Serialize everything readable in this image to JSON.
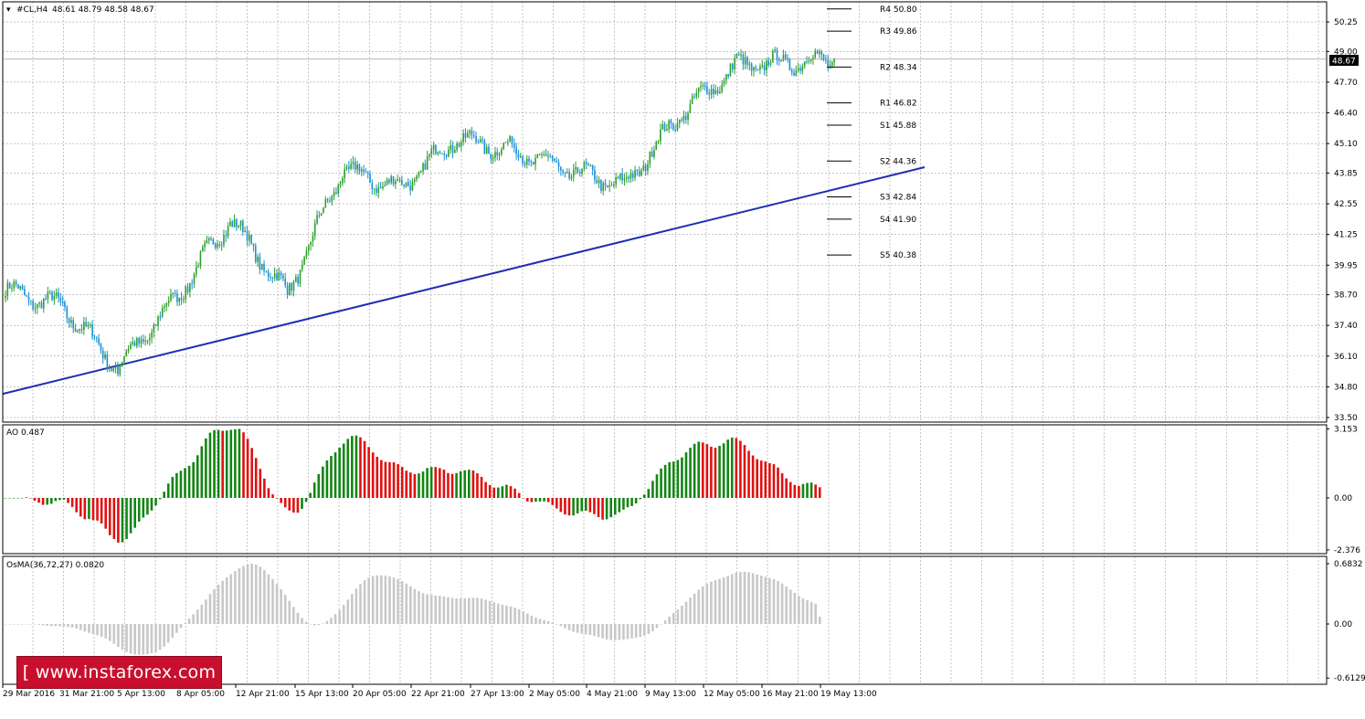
{
  "header": {
    "symbol_label": "#CL,H4",
    "quote": "48.61 48.79 48.58 48.67"
  },
  "watermark": "[ www.instaforex.com ]",
  "colors": {
    "bull": "#2e9e2e",
    "bear": "#1a8fd6",
    "trendline": "#1f2fb0",
    "ao_up": "#138513",
    "ao_down": "#e01010",
    "osma": "#c8c8c8",
    "grid": "#8c8c8c"
  },
  "chart_data": [
    {
      "type": "candlestick",
      "title": "#CL,H4",
      "ylim": [
        33.5,
        51.0
      ],
      "y_ticks": [
        "50.25",
        "49.00",
        "47.70",
        "46.40",
        "45.10",
        "43.85",
        "42.55",
        "41.25",
        "39.95",
        "38.70",
        "37.40",
        "36.10",
        "34.80",
        "33.50"
      ],
      "x_ticks": [
        "29 Mar 2016",
        "31 Mar 21:00",
        "5 Apr 13:00",
        "8 Apr 05:00",
        "12 Apr 21:00",
        "15 Apr 13:00",
        "20 Apr 05:00",
        "22 Apr 21:00",
        "27 Apr 13:00",
        "2 May 05:00",
        "4 May 21:00",
        "9 May 13:00",
        "12 May 05:00",
        "16 May 21:00",
        "19 May 13:00"
      ],
      "current_price": "48.67",
      "closes_by_tick": [
        {
          "x": "29 Mar 2016",
          "y": 38.9
        },
        {
          "x": "31 Mar 21:00",
          "y": 38.2
        },
        {
          "x": "5 Apr 13:00",
          "y": 35.6
        },
        {
          "x": "8 Apr 05:00",
          "y": 38.5
        },
        {
          "x": "12 Apr 21:00",
          "y": 41.9
        },
        {
          "x": "15 Apr 13:00",
          "y": 38.7
        },
        {
          "x": "20 Apr 05:00",
          "y": 44.0
        },
        {
          "x": "22 Apr 21:00",
          "y": 43.2
        },
        {
          "x": "27 Apr 13:00",
          "y": 45.3
        },
        {
          "x": "2 May 05:00",
          "y": 44.8
        },
        {
          "x": "4 May 21:00",
          "y": 44.0
        },
        {
          "x": "9 May 13:00",
          "y": 43.3
        },
        {
          "x": "12 May 05:00",
          "y": 46.3
        },
        {
          "x": "16 May 21:00",
          "y": 48.4
        },
        {
          "x": "19 May 13:00",
          "y": 48.67
        }
      ],
      "pivot_levels": [
        {
          "label": "R4 50.80",
          "value": 50.8
        },
        {
          "label": "R3 49.86",
          "value": 49.86
        },
        {
          "label": "R2 48.34",
          "value": 48.34
        },
        {
          "label": "R1 46.82",
          "value": 46.82
        },
        {
          "label": "S1 45.88",
          "value": 45.88
        },
        {
          "label": "S2 44.36",
          "value": 44.36
        },
        {
          "label": "S3 42.84",
          "value": 42.84
        },
        {
          "label": "S4 41.90",
          "value": 41.9
        },
        {
          "label": "S5 40.38",
          "value": 40.38
        }
      ],
      "trendline": {
        "start": {
          "x": "29 Mar 2016",
          "y": 34.5
        },
        "end": {
          "x": "19 May 13:00",
          "y": 44.1
        }
      }
    },
    {
      "type": "bar",
      "title": "AO 0.487",
      "ylim": [
        -2.376,
        3.153
      ],
      "y_ticks": [
        "3.153",
        "0.00",
        "-2.376"
      ],
      "last_value": 0.487
    },
    {
      "type": "bar",
      "title": "OsMA(36,72,27) 0.0820",
      "ylim": [
        -0.6129,
        0.6832
      ],
      "y_ticks": [
        "0.6832",
        "0.00",
        "-0.6129"
      ],
      "last_value": 0.082
    }
  ]
}
